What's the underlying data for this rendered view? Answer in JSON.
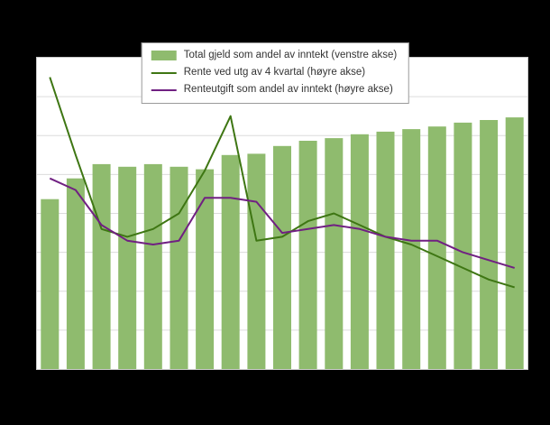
{
  "figure": {
    "background_color": "#000000",
    "plot_background_color": "#ffffff",
    "gridline_color": "#dcdcdc"
  },
  "chart_data": {
    "type": "combo",
    "title": "",
    "xlabel": "",
    "ylabel": "",
    "x_tick_labels_visible": false,
    "y_tick_labels_visible": false,
    "grid": "horizontal",
    "legend_position": "top-center",
    "left_axis": {
      "min": 0,
      "max": 240
    },
    "right_axis": {
      "min": 0,
      "max": 8
    },
    "gridline_intervals": 8,
    "series": [
      {
        "name": "Total gjeld som andel av inntekt (venstre akse)",
        "type": "bar",
        "axis": "left",
        "color": "#8fbb6e",
        "values": [
          131,
          147,
          158,
          156,
          158,
          156,
          154,
          165,
          166,
          172,
          176,
          178,
          181,
          183,
          185,
          187,
          190,
          192,
          194
        ]
      },
      {
        "name": "Rente ved utg av 4 kvartal (høyre akse)",
        "type": "line",
        "axis": "right",
        "color": "#3e7613",
        "values": [
          7.5,
          5.5,
          3.6,
          3.4,
          3.6,
          4.0,
          5.1,
          6.5,
          3.3,
          3.4,
          3.8,
          4.0,
          3.7,
          3.4,
          3.2,
          2.9,
          2.6,
          2.3,
          2.1
        ]
      },
      {
        "name": "Renteutgift som andel av inntekt (høyre akse)",
        "type": "line",
        "axis": "right",
        "color": "#702082",
        "values": [
          4.9,
          4.6,
          3.7,
          3.3,
          3.2,
          3.3,
          4.4,
          4.4,
          4.3,
          3.5,
          3.6,
          3.7,
          3.6,
          3.4,
          3.3,
          3.3,
          3.0,
          2.8,
          2.6
        ]
      }
    ]
  }
}
